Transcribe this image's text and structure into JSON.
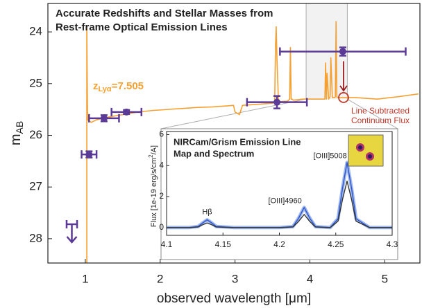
{
  "chart_data": [
    {
      "type": "line",
      "title": [
        "Accurate Redshifts and Stellar Masses from",
        "Rest-frame Optical Emission Lines"
      ],
      "xlabel": "observed wavelength [μm]",
      "ylabel": "m",
      "ylabel_sub": "AB",
      "xlim": [
        0.5,
        5.47
      ],
      "ylim": [
        28.47,
        23.45
      ],
      "xticks": [
        1,
        2,
        3,
        4,
        5
      ],
      "yticks": [
        24,
        25,
        26,
        27,
        28
      ],
      "series": [
        {
          "color": "#f5a030",
          "x": [
            1.02,
            1.02,
            1.03,
            1.08,
            1.15,
            1.3,
            1.5,
            1.7,
            1.9,
            2.1,
            2.3,
            2.5,
            2.7,
            2.9,
            2.98,
            3.0,
            3.06,
            3.1,
            3.3,
            3.5,
            3.53,
            3.54,
            3.55,
            3.56,
            3.58,
            3.7,
            3.73,
            3.74,
            3.75,
            3.76,
            3.78,
            3.9,
            4.2,
            4.21,
            4.22,
            4.23,
            4.25,
            4.26,
            4.27,
            4.28,
            4.3,
            4.33,
            4.34,
            4.35,
            4.36,
            4.38,
            4.6,
            4.9,
            5.2,
            5.45
          ],
          "values": [
            28.47,
            23.9,
            25.7,
            25.75,
            25.7,
            25.65,
            25.6,
            25.55,
            25.52,
            25.5,
            25.48,
            25.46,
            25.45,
            25.43,
            25.42,
            25.55,
            25.6,
            25.42,
            25.4,
            25.38,
            25.35,
            24.3,
            23.9,
            24.5,
            25.35,
            25.34,
            25.3,
            24.3,
            25.3,
            25.3,
            25.32,
            25.3,
            25.3,
            24.6,
            25.3,
            24.8,
            25.3,
            25.28,
            25.25,
            24.5,
            25.27,
            25.27,
            25.26,
            23.8,
            25.26,
            25.27,
            25.27,
            25.3,
            25.25,
            25.2
          ]
        }
      ],
      "photometry": {
        "color": "#5b3a97",
        "x": [
          1.05,
          1.25,
          1.55,
          3.56,
          4.44
        ],
        "values": [
          26.37,
          25.67,
          25.55,
          25.36,
          24.38
        ],
        "xerr": [
          0.1,
          0.2,
          0.2,
          0.4,
          0.84
        ],
        "yerr": [
          0.06,
          0.06,
          0.04,
          0.12,
          0.08
        ]
      },
      "upper_limit": {
        "x": 0.82,
        "value": 27.72,
        "xerr": 0.07,
        "color": "#5b3a97"
      },
      "redshift": {
        "z": "z",
        "sub": "Lyα",
        "rest": "=7.505",
        "color": "#f5a030"
      },
      "continuum": {
        "x": 4.45,
        "value": 25.27,
        "label": [
          "Line Subtracted",
          "Continuum Flux"
        ],
        "color": "#c0392b"
      }
    },
    {
      "type": "line",
      "title": [
        "NIRCam/Grism Emission Line",
        "Map and Spectrum"
      ],
      "ylabel": [
        "Flux [1e-19 erg/s/cm",
        "2",
        "/A]"
      ],
      "xlim": [
        4.1,
        4.3
      ],
      "ylim": [
        -0.5,
        6.2
      ],
      "xticks": [
        4.1,
        4.15,
        4.2,
        4.25,
        4.3
      ],
      "yticks": [
        0,
        2,
        4,
        6
      ],
      "x": [
        4.1,
        4.12,
        4.128,
        4.132,
        4.136,
        4.14,
        4.144,
        4.16,
        4.2,
        4.212,
        4.217,
        4.222,
        4.227,
        4.232,
        4.245,
        4.252,
        4.256,
        4.26,
        4.264,
        4.268,
        4.28,
        4.3
      ],
      "series": [
        {
          "color": "#2f55c8",
          "values": [
            0,
            0,
            0.07,
            0.3,
            0.5,
            0.3,
            0.07,
            0,
            0,
            0.06,
            0.6,
            1.3,
            0.6,
            0.06,
            0,
            0.57,
            2.55,
            4.2,
            2.55,
            0.57,
            0,
            0
          ]
        },
        {
          "color": "#333333",
          "values": [
            0,
            0,
            0.04,
            0.18,
            0.3,
            0.18,
            0.04,
            0,
            0,
            0.04,
            0.39,
            0.85,
            0.39,
            0.04,
            0,
            0.41,
            1.82,
            3.0,
            1.82,
            0.41,
            0,
            0
          ]
        }
      ],
      "line_labels": [
        "Hβ",
        "[OIII]4960",
        "[OIII]5008"
      ]
    }
  ]
}
